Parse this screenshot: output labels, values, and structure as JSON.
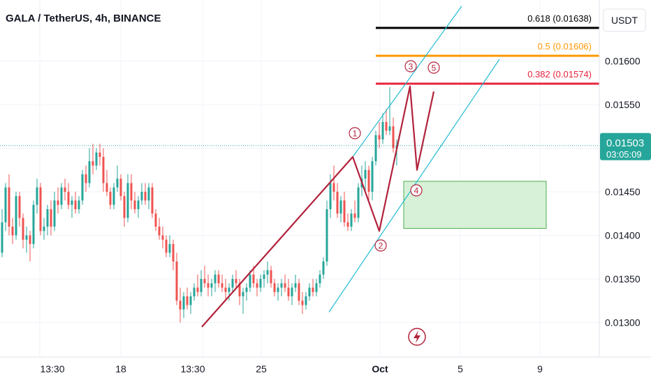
{
  "header": {
    "symbol_title": "GALA / TetherUS, 4h, BINANCE"
  },
  "colors": {
    "up": "#26a69a",
    "down": "#ef5350",
    "wave": "#b2223b",
    "channel": "#22bcd0",
    "fib_0618": "#000000",
    "fib_05": "#ff9800",
    "fib_0382": "#e8243d",
    "zone_fill": "#d7f0d8",
    "zone_border": "#4caf50",
    "price_tag": "#26a69a",
    "badge": "#b2223b"
  },
  "chart_data": {
    "type": "candlestick",
    "symbol": "GALA / TetherUS",
    "timeframe": "4h",
    "exchange": "BINANCE",
    "currency_label": "USDT",
    "x_ticks": [
      "13:30",
      "18",
      "13:30",
      "25",
      "Oct",
      "5",
      "9"
    ],
    "y_ticks": [
      "0.01600",
      "0.01550",
      "0.01450",
      "0.01400",
      "0.01350",
      "0.01300"
    ],
    "ylim": [
      0.0128,
      0.0166
    ],
    "last_price": "0.01503",
    "countdown": "03:05:09",
    "fib_levels": [
      {
        "label": "0.618 (0.01638)",
        "value": 0.01638,
        "color_key": "fib_0618"
      },
      {
        "label": "0.5 (0.01606)",
        "value": 0.01606,
        "color_key": "fib_05"
      },
      {
        "label": "0.382 (0.01574)",
        "value": 0.01574,
        "color_key": "fib_0382"
      }
    ],
    "demand_zone": {
      "top": 0.01462,
      "bottom": 0.01408
    },
    "wave_labels": [
      "1",
      "2",
      "3",
      "4",
      "5"
    ],
    "candles": [
      {
        "o": 0.0138,
        "h": 0.0143,
        "l": 0.01375,
        "c": 0.01415
      },
      {
        "o": 0.01415,
        "h": 0.0146,
        "l": 0.01405,
        "c": 0.01455
      },
      {
        "o": 0.01455,
        "h": 0.0147,
        "l": 0.014,
        "c": 0.0141
      },
      {
        "o": 0.0141,
        "h": 0.0142,
        "l": 0.0139,
        "c": 0.014
      },
      {
        "o": 0.014,
        "h": 0.0145,
        "l": 0.01395,
        "c": 0.01445
      },
      {
        "o": 0.01445,
        "h": 0.0145,
        "l": 0.0141,
        "c": 0.0142
      },
      {
        "o": 0.0142,
        "h": 0.01425,
        "l": 0.01385,
        "c": 0.01395
      },
      {
        "o": 0.01395,
        "h": 0.0141,
        "l": 0.0138,
        "c": 0.014
      },
      {
        "o": 0.014,
        "h": 0.01405,
        "l": 0.0137,
        "c": 0.0139
      },
      {
        "o": 0.0139,
        "h": 0.0144,
        "l": 0.01385,
        "c": 0.01435
      },
      {
        "o": 0.01435,
        "h": 0.01465,
        "l": 0.01425,
        "c": 0.01455
      },
      {
        "o": 0.01455,
        "h": 0.0146,
        "l": 0.014,
        "c": 0.01405
      },
      {
        "o": 0.01405,
        "h": 0.0142,
        "l": 0.01395,
        "c": 0.0141
      },
      {
        "o": 0.0141,
        "h": 0.01435,
        "l": 0.014,
        "c": 0.0143
      },
      {
        "o": 0.0143,
        "h": 0.0144,
        "l": 0.014,
        "c": 0.0141
      },
      {
        "o": 0.0141,
        "h": 0.0145,
        "l": 0.01405,
        "c": 0.0144
      },
      {
        "o": 0.0144,
        "h": 0.01455,
        "l": 0.01425,
        "c": 0.01435
      },
      {
        "o": 0.01435,
        "h": 0.0146,
        "l": 0.0143,
        "c": 0.01455
      },
      {
        "o": 0.01455,
        "h": 0.01465,
        "l": 0.0144,
        "c": 0.0145
      },
      {
        "o": 0.0145,
        "h": 0.0146,
        "l": 0.0143,
        "c": 0.01435
      },
      {
        "o": 0.01435,
        "h": 0.01445,
        "l": 0.0142,
        "c": 0.0144
      },
      {
        "o": 0.0144,
        "h": 0.0145,
        "l": 0.01425,
        "c": 0.0143
      },
      {
        "o": 0.0143,
        "h": 0.01445,
        "l": 0.01425,
        "c": 0.0144
      },
      {
        "o": 0.0144,
        "h": 0.01475,
        "l": 0.01435,
        "c": 0.0147
      },
      {
        "o": 0.0147,
        "h": 0.0148,
        "l": 0.0145,
        "c": 0.0146
      },
      {
        "o": 0.0146,
        "h": 0.015,
        "l": 0.01455,
        "c": 0.01485
      },
      {
        "o": 0.01485,
        "h": 0.01505,
        "l": 0.0147,
        "c": 0.0148
      },
      {
        "o": 0.0148,
        "h": 0.015,
        "l": 0.01475,
        "c": 0.01495
      },
      {
        "o": 0.01495,
        "h": 0.01505,
        "l": 0.0148,
        "c": 0.0149
      },
      {
        "o": 0.0149,
        "h": 0.015,
        "l": 0.0145,
        "c": 0.0146
      },
      {
        "o": 0.0146,
        "h": 0.01475,
        "l": 0.01445,
        "c": 0.0145
      },
      {
        "o": 0.0145,
        "h": 0.01455,
        "l": 0.0143,
        "c": 0.01435
      },
      {
        "o": 0.01435,
        "h": 0.0146,
        "l": 0.0143,
        "c": 0.01455
      },
      {
        "o": 0.01455,
        "h": 0.0148,
        "l": 0.0145,
        "c": 0.01465
      },
      {
        "o": 0.01465,
        "h": 0.0147,
        "l": 0.0144,
        "c": 0.01445
      },
      {
        "o": 0.01445,
        "h": 0.0145,
        "l": 0.0141,
        "c": 0.0142
      },
      {
        "o": 0.0142,
        "h": 0.0147,
        "l": 0.01415,
        "c": 0.0146
      },
      {
        "o": 0.0146,
        "h": 0.0147,
        "l": 0.0143,
        "c": 0.0144
      },
      {
        "o": 0.0144,
        "h": 0.0145,
        "l": 0.01425,
        "c": 0.0143
      },
      {
        "o": 0.0143,
        "h": 0.01445,
        "l": 0.0142,
        "c": 0.0144
      },
      {
        "o": 0.0144,
        "h": 0.0146,
        "l": 0.01435,
        "c": 0.0145
      },
      {
        "o": 0.0145,
        "h": 0.0146,
        "l": 0.01435,
        "c": 0.0144
      },
      {
        "o": 0.0144,
        "h": 0.0146,
        "l": 0.0143,
        "c": 0.01455
      },
      {
        "o": 0.01455,
        "h": 0.0146,
        "l": 0.0142,
        "c": 0.01425
      },
      {
        "o": 0.01425,
        "h": 0.0143,
        "l": 0.01405,
        "c": 0.0141
      },
      {
        "o": 0.0141,
        "h": 0.0142,
        "l": 0.01395,
        "c": 0.014
      },
      {
        "o": 0.014,
        "h": 0.0141,
        "l": 0.01385,
        "c": 0.01395
      },
      {
        "o": 0.01395,
        "h": 0.014,
        "l": 0.01375,
        "c": 0.0138
      },
      {
        "o": 0.0138,
        "h": 0.014,
        "l": 0.01375,
        "c": 0.0139
      },
      {
        "o": 0.0139,
        "h": 0.01395,
        "l": 0.0136,
        "c": 0.0137
      },
      {
        "o": 0.0137,
        "h": 0.0138,
        "l": 0.0132,
        "c": 0.01325
      },
      {
        "o": 0.01325,
        "h": 0.0134,
        "l": 0.013,
        "c": 0.01315
      },
      {
        "o": 0.01315,
        "h": 0.01335,
        "l": 0.01305,
        "c": 0.0133
      },
      {
        "o": 0.0133,
        "h": 0.0134,
        "l": 0.01315,
        "c": 0.0132
      },
      {
        "o": 0.0132,
        "h": 0.01335,
        "l": 0.0131,
        "c": 0.0133
      },
      {
        "o": 0.0133,
        "h": 0.01345,
        "l": 0.01325,
        "c": 0.0134
      },
      {
        "o": 0.0134,
        "h": 0.01355,
        "l": 0.0133,
        "c": 0.01335
      },
      {
        "o": 0.01335,
        "h": 0.0136,
        "l": 0.0133,
        "c": 0.0135
      },
      {
        "o": 0.0135,
        "h": 0.01365,
        "l": 0.0134,
        "c": 0.01345
      },
      {
        "o": 0.01345,
        "h": 0.01355,
        "l": 0.0133,
        "c": 0.0134
      },
      {
        "o": 0.0134,
        "h": 0.0135,
        "l": 0.0133,
        "c": 0.01345
      },
      {
        "o": 0.01345,
        "h": 0.0136,
        "l": 0.01335,
        "c": 0.01355
      },
      {
        "o": 0.01355,
        "h": 0.0136,
        "l": 0.0134,
        "c": 0.01345
      },
      {
        "o": 0.01345,
        "h": 0.01355,
        "l": 0.01335,
        "c": 0.0134
      },
      {
        "o": 0.0134,
        "h": 0.0135,
        "l": 0.01325,
        "c": 0.01335
      },
      {
        "o": 0.01335,
        "h": 0.01345,
        "l": 0.01325,
        "c": 0.0134
      },
      {
        "o": 0.0134,
        "h": 0.01355,
        "l": 0.01335,
        "c": 0.0135
      },
      {
        "o": 0.0135,
        "h": 0.0136,
        "l": 0.0134,
        "c": 0.01345
      },
      {
        "o": 0.01345,
        "h": 0.0135,
        "l": 0.0132,
        "c": 0.0133
      },
      {
        "o": 0.0133,
        "h": 0.0134,
        "l": 0.0131,
        "c": 0.01335
      },
      {
        "o": 0.01335,
        "h": 0.01345,
        "l": 0.01325,
        "c": 0.0134
      },
      {
        "o": 0.0134,
        "h": 0.0136,
        "l": 0.01335,
        "c": 0.01355
      },
      {
        "o": 0.01355,
        "h": 0.01365,
        "l": 0.0134,
        "c": 0.01345
      },
      {
        "o": 0.01345,
        "h": 0.0135,
        "l": 0.0133,
        "c": 0.0134
      },
      {
        "o": 0.0134,
        "h": 0.01355,
        "l": 0.01335,
        "c": 0.0135
      },
      {
        "o": 0.0135,
        "h": 0.0136,
        "l": 0.0134,
        "c": 0.01355
      },
      {
        "o": 0.01355,
        "h": 0.0137,
        "l": 0.01345,
        "c": 0.0136
      },
      {
        "o": 0.0136,
        "h": 0.01365,
        "l": 0.0134,
        "c": 0.01345
      },
      {
        "o": 0.01345,
        "h": 0.0135,
        "l": 0.0133,
        "c": 0.01335
      },
      {
        "o": 0.01335,
        "h": 0.01345,
        "l": 0.01325,
        "c": 0.0134
      },
      {
        "o": 0.0134,
        "h": 0.0135,
        "l": 0.0133,
        "c": 0.01345
      },
      {
        "o": 0.01345,
        "h": 0.01355,
        "l": 0.01335,
        "c": 0.0134
      },
      {
        "o": 0.0134,
        "h": 0.0135,
        "l": 0.01325,
        "c": 0.0133
      },
      {
        "o": 0.0133,
        "h": 0.01345,
        "l": 0.0132,
        "c": 0.0134
      },
      {
        "o": 0.0134,
        "h": 0.01355,
        "l": 0.01335,
        "c": 0.01345
      },
      {
        "o": 0.01345,
        "h": 0.0135,
        "l": 0.0132,
        "c": 0.01325
      },
      {
        "o": 0.01325,
        "h": 0.01335,
        "l": 0.0131,
        "c": 0.0132
      },
      {
        "o": 0.0132,
        "h": 0.01335,
        "l": 0.01315,
        "c": 0.0133
      },
      {
        "o": 0.0133,
        "h": 0.01345,
        "l": 0.01325,
        "c": 0.0134
      },
      {
        "o": 0.0134,
        "h": 0.0135,
        "l": 0.0133,
        "c": 0.01335
      },
      {
        "o": 0.01335,
        "h": 0.0135,
        "l": 0.0133,
        "c": 0.01345
      },
      {
        "o": 0.01345,
        "h": 0.0136,
        "l": 0.0134,
        "c": 0.01355
      },
      {
        "o": 0.01355,
        "h": 0.01375,
        "l": 0.0135,
        "c": 0.0137
      },
      {
        "o": 0.0137,
        "h": 0.0144,
        "l": 0.01365,
        "c": 0.0143
      },
      {
        "o": 0.0143,
        "h": 0.0147,
        "l": 0.0142,
        "c": 0.0146
      },
      {
        "o": 0.0146,
        "h": 0.0148,
        "l": 0.0144,
        "c": 0.0145
      },
      {
        "o": 0.0145,
        "h": 0.0146,
        "l": 0.0142,
        "c": 0.01425
      },
      {
        "o": 0.01425,
        "h": 0.01445,
        "l": 0.01415,
        "c": 0.0144
      },
      {
        "o": 0.0144,
        "h": 0.0145,
        "l": 0.0141,
        "c": 0.01415
      },
      {
        "o": 0.01415,
        "h": 0.01425,
        "l": 0.01405,
        "c": 0.0141
      },
      {
        "o": 0.0141,
        "h": 0.0143,
        "l": 0.01405,
        "c": 0.01425
      },
      {
        "o": 0.01425,
        "h": 0.0144,
        "l": 0.01415,
        "c": 0.0142
      },
      {
        "o": 0.0142,
        "h": 0.0146,
        "l": 0.01415,
        "c": 0.01455
      },
      {
        "o": 0.01455,
        "h": 0.0148,
        "l": 0.01445,
        "c": 0.01465
      },
      {
        "o": 0.01465,
        "h": 0.01485,
        "l": 0.0145,
        "c": 0.01475
      },
      {
        "o": 0.01475,
        "h": 0.0148,
        "l": 0.0144,
        "c": 0.0145
      },
      {
        "o": 0.0145,
        "h": 0.0149,
        "l": 0.0144,
        "c": 0.01485
      },
      {
        "o": 0.01485,
        "h": 0.0152,
        "l": 0.0148,
        "c": 0.01515
      },
      {
        "o": 0.01515,
        "h": 0.0153,
        "l": 0.015,
        "c": 0.0151
      },
      {
        "o": 0.0151,
        "h": 0.0154,
        "l": 0.01505,
        "c": 0.0153
      },
      {
        "o": 0.0153,
        "h": 0.01545,
        "l": 0.01515,
        "c": 0.0152
      },
      {
        "o": 0.0152,
        "h": 0.0157,
        "l": 0.01515,
        "c": 0.01525
      },
      {
        "o": 0.01525,
        "h": 0.01535,
        "l": 0.01495,
        "c": 0.015
      },
      {
        "o": 0.015,
        "h": 0.0151,
        "l": 0.0148,
        "c": 0.01503
      }
    ]
  }
}
